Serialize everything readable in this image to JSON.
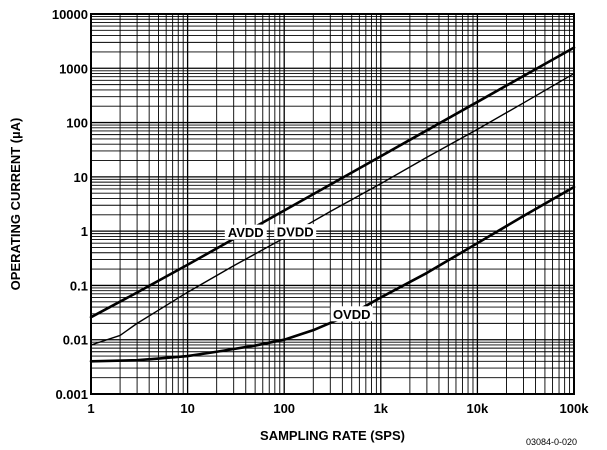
{
  "chart_data": {
    "type": "line",
    "xlabel": "SAMPLING RATE (SPS)",
    "ylabel": "OPERATING CURRENT (µA)",
    "x_scale": "log",
    "y_scale": "log",
    "xlim": [
      1,
      100000
    ],
    "ylim": [
      0.001,
      10000
    ],
    "grid": true,
    "x_ticks": [
      1,
      10,
      100,
      1000,
      10000,
      100000
    ],
    "x_tick_labels": [
      "1",
      "10",
      "100",
      "1k",
      "10k",
      "100k"
    ],
    "y_ticks": [
      0.001,
      0.01,
      0.1,
      1,
      10,
      100,
      1000,
      10000
    ],
    "y_tick_labels": [
      "0.001",
      "0.01",
      "0.1",
      "1",
      "10",
      "100",
      "1000",
      "10000"
    ],
    "series": [
      {
        "name": "AVDD",
        "x": [
          1,
          3,
          10,
          30,
          100,
          300,
          1000,
          3000,
          10000,
          30000,
          100000
        ],
        "y": [
          0.026,
          0.074,
          0.24,
          0.72,
          2.4,
          7.2,
          24,
          72,
          240,
          720,
          2400
        ],
        "stroke": "#000000",
        "weight": "heavy"
      },
      {
        "name": "DVDD",
        "x": [
          1,
          2,
          3,
          5,
          10,
          30,
          100,
          300,
          1000,
          3000,
          10000,
          30000,
          100000
        ],
        "y": [
          0.008,
          0.012,
          0.02,
          0.035,
          0.075,
          0.23,
          0.75,
          2.3,
          7.5,
          23,
          75,
          230,
          800
        ],
        "stroke": "#000000",
        "weight": "light"
      },
      {
        "name": "OVDD",
        "x": [
          1,
          3,
          5,
          10,
          20,
          50,
          100,
          200,
          500,
          1000,
          3000,
          10000,
          30000,
          100000
        ],
        "y": [
          0.004,
          0.0042,
          0.0045,
          0.005,
          0.006,
          0.0078,
          0.01,
          0.015,
          0.03,
          0.06,
          0.17,
          0.6,
          1.9,
          6.5
        ],
        "stroke": "#000000",
        "weight": "heavy"
      }
    ],
    "annotations": [
      {
        "text": "AVDD",
        "series": "AVDD"
      },
      {
        "text": "DVDD",
        "series": "DVDD"
      },
      {
        "text": "OVDD",
        "series": "OVDD"
      }
    ]
  },
  "figure_id": "03084-0-020"
}
